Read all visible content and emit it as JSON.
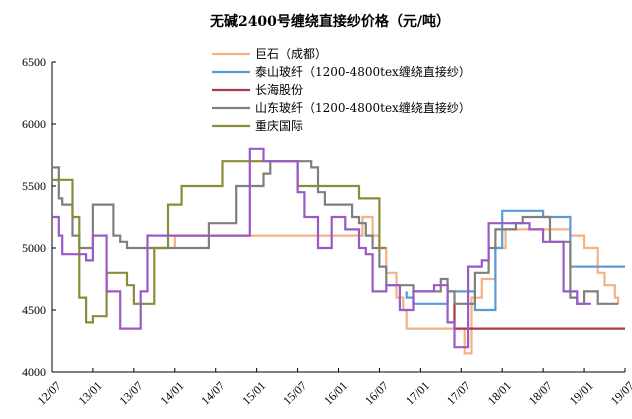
{
  "chart_data": {
    "type": "line",
    "title": "无碱2400号缠绕直接纱价格（元/吨）",
    "xlabel": "",
    "ylabel": "",
    "ylim": [
      4000,
      6500
    ],
    "yticks": [
      4000,
      4500,
      5000,
      5500,
      6000,
      6500
    ],
    "xlim": [
      0,
      84
    ],
    "xticks": [
      {
        "pos": 0,
        "label": "12/07"
      },
      {
        "pos": 6,
        "label": "13/01"
      },
      {
        "pos": 12,
        "label": "13/07"
      },
      {
        "pos": 18,
        "label": "14/01"
      },
      {
        "pos": 24,
        "label": "14/07"
      },
      {
        "pos": 30,
        "label": "15/01"
      },
      {
        "pos": 36,
        "label": "15/07"
      },
      {
        "pos": 42,
        "label": "16/01"
      },
      {
        "pos": 48,
        "label": "16/07"
      },
      {
        "pos": 54,
        "label": "17/01"
      },
      {
        "pos": 60,
        "label": "17/07"
      },
      {
        "pos": 66,
        "label": "18/01"
      },
      {
        "pos": 72,
        "label": "18/07"
      },
      {
        "pos": 78,
        "label": "19/01"
      },
      {
        "pos": 84,
        "label": "19/07"
      }
    ],
    "grid": false,
    "legend_position": "top",
    "series": [
      {
        "name": "巨石（成都）",
        "color": "#F4B183",
        "points": [
          [
            18,
            5000
          ],
          [
            18,
            5100
          ],
          [
            45.5,
            5100
          ],
          [
            45.5,
            5250
          ],
          [
            47,
            5250
          ],
          [
            47,
            5100
          ],
          [
            48,
            5100
          ],
          [
            48,
            5000
          ],
          [
            49,
            5000
          ],
          [
            49,
            4800
          ],
          [
            50.5,
            4800
          ],
          [
            50.5,
            4600
          ],
          [
            51.5,
            4600
          ],
          [
            51.5,
            4500
          ],
          [
            52,
            4500
          ],
          [
            52,
            4350
          ],
          [
            60.5,
            4350
          ],
          [
            60.5,
            4150
          ],
          [
            61.5,
            4150
          ],
          [
            61.5,
            4600
          ],
          [
            63,
            4600
          ],
          [
            63,
            4750
          ],
          [
            65,
            4750
          ],
          [
            65,
            5000
          ],
          [
            66.5,
            5000
          ],
          [
            66.5,
            5150
          ],
          [
            76,
            5150
          ],
          [
            76,
            5100
          ],
          [
            78,
            5100
          ],
          [
            78,
            5000
          ],
          [
            80,
            5000
          ],
          [
            80,
            4800
          ],
          [
            81,
            4800
          ],
          [
            81,
            4700
          ],
          [
            82.5,
            4700
          ],
          [
            82.5,
            4600
          ],
          [
            83,
            4600
          ],
          [
            83,
            4550
          ]
        ]
      },
      {
        "name": "泰山玻纤（1200-4800tex缠绕直接纱）",
        "color": "#5B9BD5",
        "points": [
          [
            52,
            4650
          ],
          [
            52,
            4600
          ],
          [
            53,
            4600
          ],
          [
            53,
            4550
          ],
          [
            58,
            4550
          ],
          [
            58,
            4650
          ],
          [
            62,
            4650
          ],
          [
            62,
            4500
          ],
          [
            65,
            4500
          ],
          [
            65,
            5000
          ],
          [
            66,
            5000
          ],
          [
            66,
            5300
          ],
          [
            72,
            5300
          ],
          [
            72,
            5250
          ],
          [
            76,
            5250
          ],
          [
            76,
            4850
          ],
          [
            84,
            4850
          ]
        ]
      },
      {
        "name": "长海股份",
        "color": "#A93A46",
        "points": [
          [
            59,
            4550
          ],
          [
            59,
            4350
          ],
          [
            84,
            4350
          ]
        ]
      },
      {
        "name": "山东玻纤（1200-4800tex缠绕直接纱）",
        "color": "#7F7F7F",
        "points": [
          [
            0,
            5650
          ],
          [
            1,
            5650
          ],
          [
            1,
            5400
          ],
          [
            1.5,
            5400
          ],
          [
            1.5,
            5350
          ],
          [
            3,
            5350
          ],
          [
            3,
            5100
          ],
          [
            4,
            5100
          ],
          [
            4,
            5000
          ],
          [
            6,
            5000
          ],
          [
            6,
            5350
          ],
          [
            9,
            5350
          ],
          [
            9,
            5100
          ],
          [
            10,
            5100
          ],
          [
            10,
            5050
          ],
          [
            11,
            5050
          ],
          [
            11,
            5000
          ],
          [
            23,
            5000
          ],
          [
            23,
            5200
          ],
          [
            27,
            5200
          ],
          [
            27,
            5500
          ],
          [
            31,
            5500
          ],
          [
            31,
            5600
          ],
          [
            32,
            5600
          ],
          [
            32,
            5700
          ],
          [
            38,
            5700
          ],
          [
            38,
            5650
          ],
          [
            39,
            5650
          ],
          [
            39,
            5450
          ],
          [
            40,
            5450
          ],
          [
            40,
            5350
          ],
          [
            44,
            5350
          ],
          [
            44,
            5250
          ],
          [
            45,
            5250
          ],
          [
            45,
            5200
          ],
          [
            46,
            5200
          ],
          [
            46,
            5100
          ],
          [
            47,
            5100
          ],
          [
            47,
            5000
          ],
          [
            48,
            5000
          ],
          [
            48,
            4850
          ],
          [
            49,
            4850
          ],
          [
            49,
            4700
          ],
          [
            53,
            4700
          ],
          [
            53,
            4650
          ],
          [
            57,
            4650
          ],
          [
            57,
            4750
          ],
          [
            58,
            4750
          ],
          [
            58,
            4650
          ],
          [
            59,
            4650
          ],
          [
            59,
            4550
          ],
          [
            62,
            4550
          ],
          [
            62,
            4800
          ],
          [
            64,
            4800
          ],
          [
            64,
            5000
          ],
          [
            65,
            5000
          ],
          [
            65,
            5150
          ],
          [
            68,
            5150
          ],
          [
            68,
            5200
          ],
          [
            69,
            5200
          ],
          [
            69,
            5250
          ],
          [
            73,
            5250
          ],
          [
            73,
            5050
          ],
          [
            76,
            5050
          ],
          [
            76,
            4600
          ],
          [
            77,
            4600
          ],
          [
            77,
            4550
          ],
          [
            78,
            4550
          ],
          [
            78,
            4650
          ],
          [
            80,
            4650
          ],
          [
            80,
            4550
          ],
          [
            83,
            4550
          ]
        ]
      },
      {
        "name": "重庆国际",
        "color": "#8B8B3A",
        "points": [
          [
            0,
            5550
          ],
          [
            3,
            5550
          ],
          [
            3,
            5250
          ],
          [
            4,
            5250
          ],
          [
            4,
            4600
          ],
          [
            5,
            4600
          ],
          [
            5,
            4400
          ],
          [
            6,
            4400
          ],
          [
            6,
            4450
          ],
          [
            8,
            4450
          ],
          [
            8,
            4800
          ],
          [
            11,
            4800
          ],
          [
            11,
            4700
          ],
          [
            12,
            4700
          ],
          [
            12,
            4550
          ],
          [
            15,
            4550
          ],
          [
            15,
            5000
          ],
          [
            17,
            5000
          ],
          [
            17,
            5350
          ],
          [
            19,
            5350
          ],
          [
            19,
            5500
          ],
          [
            25,
            5500
          ],
          [
            25,
            5700
          ],
          [
            36,
            5700
          ],
          [
            36,
            5500
          ],
          [
            45,
            5500
          ],
          [
            45,
            5400
          ],
          [
            48,
            5400
          ],
          [
            48,
            5000
          ],
          [
            49,
            5000
          ]
        ]
      },
      {
        "name": "",
        "color": "#9B59C6",
        "points": [
          [
            0,
            5250
          ],
          [
            1,
            5250
          ],
          [
            1,
            5100
          ],
          [
            1.5,
            5100
          ],
          [
            1.5,
            4950
          ],
          [
            5,
            4950
          ],
          [
            5,
            4900
          ],
          [
            6,
            4900
          ],
          [
            6,
            5100
          ],
          [
            8,
            5100
          ],
          [
            8,
            4650
          ],
          [
            10,
            4650
          ],
          [
            10,
            4350
          ],
          [
            13,
            4350
          ],
          [
            13,
            4650
          ],
          [
            14,
            4650
          ],
          [
            14,
            5100
          ],
          [
            17,
            5100
          ],
          [
            17,
            5100
          ],
          [
            29,
            5100
          ],
          [
            29,
            5800
          ],
          [
            31,
            5800
          ],
          [
            31,
            5700
          ],
          [
            36,
            5700
          ],
          [
            36,
            5450
          ],
          [
            37,
            5450
          ],
          [
            37,
            5250
          ],
          [
            39,
            5250
          ],
          [
            39,
            5000
          ],
          [
            41,
            5000
          ],
          [
            41,
            5250
          ],
          [
            43,
            5250
          ],
          [
            43,
            5150
          ],
          [
            45,
            5150
          ],
          [
            45,
            5000
          ],
          [
            46,
            5000
          ],
          [
            46,
            4950
          ],
          [
            47,
            4950
          ],
          [
            47,
            4650
          ],
          [
            49,
            4650
          ],
          [
            49,
            4700
          ],
          [
            51,
            4700
          ],
          [
            51,
            4500
          ],
          [
            53,
            4500
          ],
          [
            53,
            4650
          ],
          [
            56,
            4650
          ],
          [
            56,
            4700
          ],
          [
            58,
            4700
          ],
          [
            58,
            4400
          ],
          [
            59,
            4400
          ],
          [
            59,
            4200
          ],
          [
            61,
            4200
          ],
          [
            61,
            4850
          ],
          [
            63,
            4850
          ],
          [
            63,
            4900
          ],
          [
            64,
            4900
          ],
          [
            64,
            5200
          ],
          [
            70,
            5200
          ],
          [
            70,
            5150
          ],
          [
            72,
            5150
          ],
          [
            72,
            5050
          ],
          [
            75,
            5050
          ],
          [
            75,
            4650
          ],
          [
            77,
            4650
          ],
          [
            77,
            4550
          ],
          [
            79,
            4550
          ]
        ]
      }
    ]
  }
}
